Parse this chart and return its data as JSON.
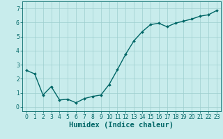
{
  "x": [
    0,
    1,
    2,
    3,
    4,
    5,
    6,
    7,
    8,
    9,
    10,
    11,
    12,
    13,
    14,
    15,
    16,
    17,
    18,
    19,
    20,
    21,
    22,
    23
  ],
  "y": [
    2.6,
    2.35,
    0.85,
    1.45,
    0.5,
    0.55,
    0.3,
    0.6,
    0.75,
    0.85,
    1.6,
    2.65,
    3.75,
    4.7,
    5.35,
    5.85,
    5.95,
    5.7,
    5.95,
    6.1,
    6.25,
    6.45,
    6.55,
    6.85
  ],
  "line_color": "#006666",
  "marker": "D",
  "marker_size": 2.0,
  "bg_color": "#c8ecec",
  "grid_color": "#9ecece",
  "xlabel": "Humidex (Indice chaleur)",
  "xlabel_fontsize": 7.5,
  "xlabel_color": "#006666",
  "ylim": [
    -0.3,
    7.5
  ],
  "xlim": [
    -0.5,
    23.5
  ],
  "yticks": [
    0,
    1,
    2,
    3,
    4,
    5,
    6,
    7
  ],
  "xticks": [
    0,
    1,
    2,
    3,
    4,
    5,
    6,
    7,
    8,
    9,
    10,
    11,
    12,
    13,
    14,
    15,
    16,
    17,
    18,
    19,
    20,
    21,
    22,
    23
  ],
  "tick_color": "#006666",
  "tick_fontsize": 5.5,
  "axis_color": "#006666",
  "linewidth": 1.0
}
